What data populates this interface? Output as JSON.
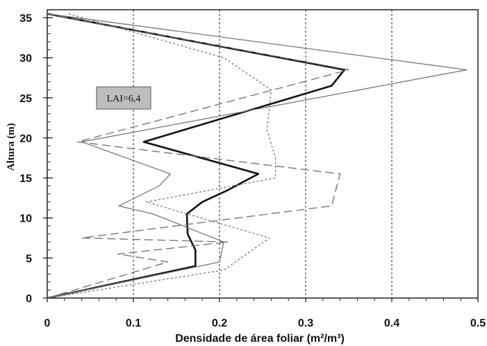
{
  "chart_data": {
    "type": "line",
    "title": "",
    "xlabel": "Densidade de área foliar (m²/m³)",
    "ylabel": "Altura (m)",
    "xlim": [
      0,
      0.5
    ],
    "ylim": [
      0,
      36
    ],
    "x_ticks": [
      "0",
      "0.1",
      "0.2",
      "0.3",
      "0.4",
      "0.5"
    ],
    "y_ticks": [
      "0",
      "5",
      "10",
      "15",
      "20",
      "25",
      "30",
      "35"
    ],
    "grid": "vertical dotted lines at x ticks",
    "legend": "none",
    "annotation": "LAI=6,4",
    "series": [
      {
        "style": "thick-solid",
        "color": "#111111",
        "points": [
          [
            0,
            0
          ],
          [
            0.172,
            4
          ],
          [
            0.172,
            6
          ],
          [
            0.163,
            8
          ],
          [
            0.162,
            10.5
          ],
          [
            0.168,
            11
          ],
          [
            0.18,
            12
          ],
          [
            0.21,
            13.5
          ],
          [
            0.245,
            15.5
          ],
          [
            0.112,
            19.5
          ],
          [
            0.33,
            26.5
          ],
          [
            0.345,
            28.5
          ],
          [
            0,
            35.5
          ]
        ]
      },
      {
        "style": "thin-solid",
        "color": "#777777",
        "points": [
          [
            0,
            0
          ],
          [
            0.2,
            4.5
          ],
          [
            0.205,
            7
          ],
          [
            0.123,
            10.5
          ],
          [
            0.083,
            11.5
          ],
          [
            0.13,
            14
          ],
          [
            0.143,
            15.5
          ],
          [
            0.04,
            19.5
          ],
          [
            0.487,
            28.5
          ],
          [
            0,
            35.5
          ]
        ]
      },
      {
        "style": "dashed",
        "color": "#777777",
        "points": [
          [
            0,
            0
          ],
          [
            0.14,
            4.5
          ],
          [
            0.082,
            5.5
          ],
          [
            0.21,
            7
          ],
          [
            0.04,
            7.5
          ],
          [
            0.33,
            11.5
          ],
          [
            0.34,
            15.5
          ],
          [
            0.035,
            19.5
          ],
          [
            0.35,
            28.5
          ],
          [
            0,
            35.5
          ]
        ]
      },
      {
        "style": "dotted",
        "color": "#777777",
        "points": [
          [
            0,
            0
          ],
          [
            0.205,
            3.5
          ],
          [
            0.258,
            7.5
          ],
          [
            0.115,
            12
          ],
          [
            0.265,
            15
          ],
          [
            0.265,
            17.5
          ],
          [
            0.255,
            21
          ],
          [
            0.26,
            26
          ],
          [
            0.205,
            30
          ],
          [
            0.025,
            35.5
          ]
        ]
      }
    ]
  },
  "colors": {
    "background": "#ffffff",
    "axes": "#222222",
    "grid": "#333333",
    "annotation_fill": "#bdbdbd"
  }
}
